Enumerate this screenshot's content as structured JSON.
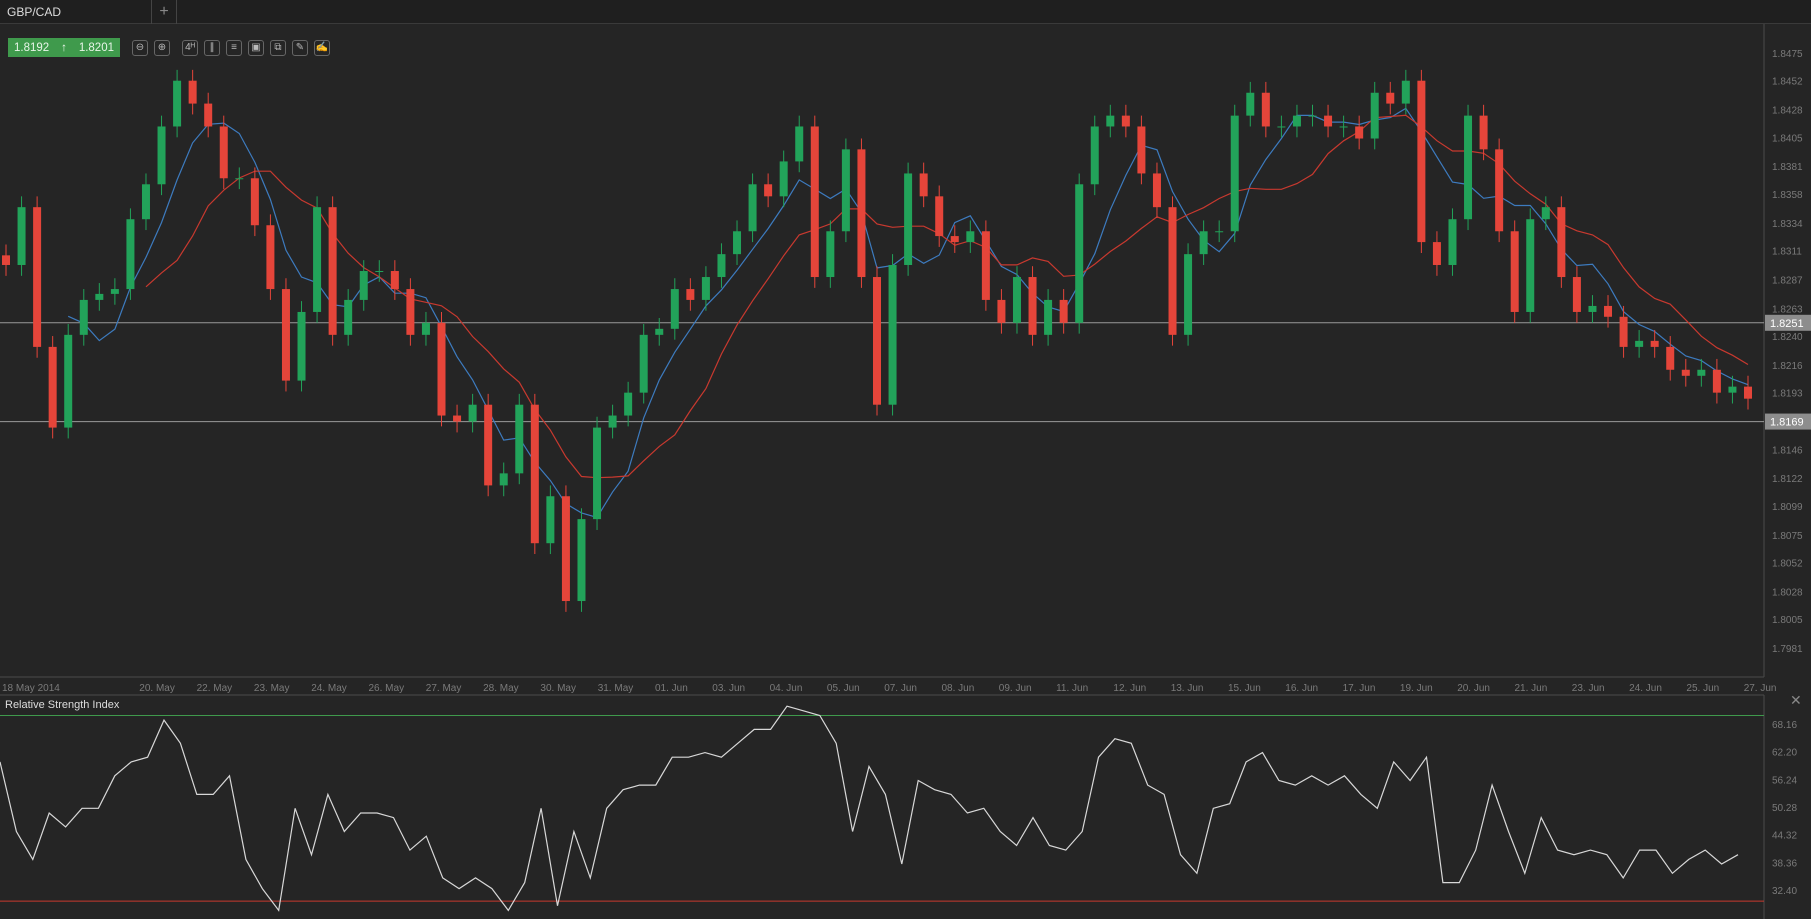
{
  "tabs": [
    {
      "label": "GBP/CAD"
    },
    {
      "label": "+"
    }
  ],
  "toolbar": {
    "bid": "1.8192",
    "ask": "1.8201",
    "direction_icon": "arrow-up-icon",
    "buttons": [
      {
        "name": "zoom-out-icon",
        "glyph": "⊖"
      },
      {
        "name": "zoom-in-icon",
        "glyph": "⊕"
      },
      {
        "name": "timeframe-h4",
        "glyph": "4ᴴ"
      },
      {
        "name": "chart-type-candles-icon",
        "glyph": "∥"
      },
      {
        "name": "indicators-icon",
        "glyph": "≡"
      },
      {
        "name": "chart-image-icon",
        "glyph": "▣"
      },
      {
        "name": "copy-icon",
        "glyph": "⧉"
      },
      {
        "name": "edit-icon",
        "glyph": "✎"
      },
      {
        "name": "draw-icon",
        "glyph": "✍"
      }
    ]
  },
  "colors": {
    "up": "#22a35a",
    "down": "#e5453a",
    "ma_fast": "#3d7bbf",
    "ma_slow": "#c8392f",
    "rsi": "#d8d8d8",
    "rsi_upper": "#3f9a4c",
    "rsi_lower": "#c8392f",
    "hline": "#9a9a9a"
  },
  "chart_data": [
    {
      "type": "candlestick",
      "symbol": "GBP/CAD",
      "timeframe": "H4",
      "ylim": [
        1.796,
        1.85
      ],
      "yticks": [
        "1.8475",
        "1.8452",
        "1.8428",
        "1.8405",
        "1.8381",
        "1.8358",
        "1.8334",
        "1.8311",
        "1.8287",
        "1.8263",
        "1.8240",
        "1.8216",
        "1.8193",
        "1.8146",
        "1.8122",
        "1.8099",
        "1.8075",
        "1.8052",
        "1.8028",
        "1.8005",
        "1.7981"
      ],
      "xticks": [
        "18 May 2014",
        "20. May",
        "22. May",
        "23. May",
        "24. May",
        "26. May",
        "27. May",
        "28. May",
        "30. May",
        "31. May",
        "01. Jun",
        "03. Jun",
        "04. Jun",
        "05. Jun",
        "07. Jun",
        "08. Jun",
        "09. Jun",
        "11. Jun",
        "12. Jun",
        "13. Jun",
        "15. Jun",
        "16. Jun",
        "17. Jun",
        "19. Jun",
        "20. Jun",
        "21. Jun",
        "23. Jun",
        "24. Jun",
        "25. Jun",
        "27. Jun"
      ],
      "horizontal_lines": [
        {
          "value": "1.8251"
        },
        {
          "value": "1.8169"
        }
      ],
      "moving_averages": [
        {
          "period": 5,
          "color": "ma_fast"
        },
        {
          "period": 10,
          "color": "ma_slow"
        }
      ],
      "close": [
        1.8299,
        1.8347,
        1.8231,
        1.8164,
        1.8241,
        1.827,
        1.8275,
        1.8279,
        1.8337,
        1.8366,
        1.8414,
        1.8452,
        1.8433,
        1.8414,
        1.8371,
        1.8371,
        1.8332,
        1.8279,
        1.8203,
        1.826,
        1.8347,
        1.8241,
        1.827,
        1.8294,
        1.8294,
        1.8279,
        1.8241,
        1.8251,
        1.8174,
        1.8169,
        1.8183,
        1.8116,
        1.8126,
        1.8183,
        1.8068,
        1.8107,
        1.802,
        1.8088,
        1.8164,
        1.8174,
        1.8193,
        1.8241,
        1.8246,
        1.8279,
        1.827,
        1.8289,
        1.8308,
        1.8327,
        1.8366,
        1.8356,
        1.8385,
        1.8414,
        1.8289,
        1.8327,
        1.8395,
        1.8289,
        1.8183,
        1.8299,
        1.8375,
        1.8356,
        1.8323,
        1.8318,
        1.8327,
        1.827,
        1.8251,
        1.8289,
        1.8241,
        1.827,
        1.8251,
        1.8366,
        1.8414,
        1.8423,
        1.8414,
        1.8375,
        1.8347,
        1.8241,
        1.8308,
        1.8327,
        1.8327,
        1.8423,
        1.8442,
        1.8414,
        1.8414,
        1.8423,
        1.8423,
        1.8414,
        1.8414,
        1.8404,
        1.8442,
        1.8433,
        1.8452,
        1.8318,
        1.8299,
        1.8337,
        1.8423,
        1.8395,
        1.8327,
        1.826,
        1.8337,
        1.8347,
        1.8289,
        1.826,
        1.8265,
        1.8256,
        1.8231,
        1.8236,
        1.8231,
        1.8212,
        1.8207,
        1.8212,
        1.8193,
        1.8198,
        1.8188
      ]
    },
    {
      "type": "line",
      "title": "Relative Strength Index",
      "ylim": [
        26,
        74
      ],
      "yticks": [
        "68.16",
        "62.20",
        "56.24",
        "50.28",
        "44.32",
        "38.36",
        "32.40"
      ],
      "levels": [
        70,
        30
      ],
      "values": [
        60,
        45,
        39,
        49,
        46,
        50,
        50,
        57,
        60,
        61,
        69,
        64,
        53,
        53,
        57,
        39,
        32.7,
        28,
        50,
        40,
        53,
        45,
        49,
        49,
        48,
        41,
        44,
        35,
        32.7,
        35,
        32.7,
        28,
        34,
        50,
        29,
        45,
        35,
        50,
        54,
        55,
        55,
        61,
        61,
        62,
        61,
        64,
        67,
        67,
        72,
        71,
        70,
        64,
        45,
        59,
        53,
        38,
        56,
        54,
        53,
        49,
        50,
        45,
        42,
        48,
        42,
        41,
        45,
        61,
        65,
        64,
        55,
        53,
        40,
        36,
        50,
        51,
        60,
        62,
        56,
        55,
        57,
        55,
        57,
        53,
        50,
        60,
        56,
        61,
        34,
        34,
        41,
        55,
        45,
        36,
        48,
        41,
        40,
        41,
        40,
        35,
        41,
        41,
        36,
        39,
        41,
        38,
        40
      ]
    }
  ]
}
